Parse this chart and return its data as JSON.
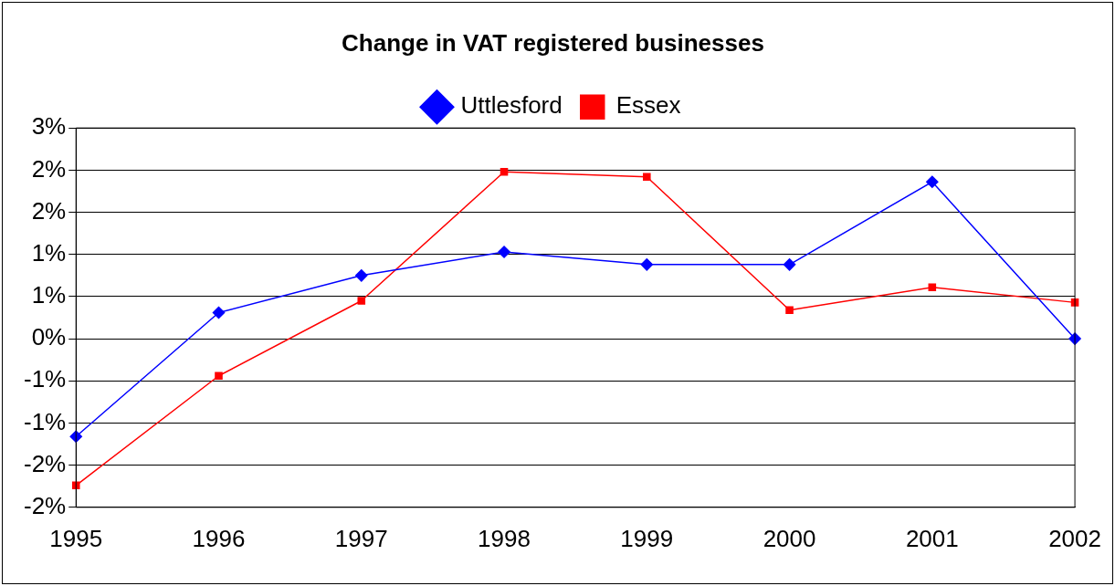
{
  "chart_data": {
    "type": "line",
    "title": "Change in VAT registered businesses",
    "categories": [
      "1995",
      "1996",
      "1997",
      "1998",
      "1999",
      "2000",
      "2001",
      "2002"
    ],
    "series": [
      {
        "name": "Uttlesford",
        "color": "#0000ff",
        "marker": "diamond",
        "values": [
          -1.16,
          0.31,
          0.75,
          1.03,
          0.88,
          0.88,
          1.86,
          0
        ]
      },
      {
        "name": "Essex",
        "color": "#ff0000",
        "marker": "square",
        "values": [
          -1.74,
          -0.44,
          0.45,
          1.98,
          1.92,
          0.34,
          0.61,
          0.43
        ]
      }
    ],
    "ylim": [
      -2,
      2.5
    ],
    "yticks": [
      {
        "value": -2,
        "label": "-2%"
      },
      {
        "value": -1.5,
        "label": "-2%"
      },
      {
        "value": -1,
        "label": "-1%"
      },
      {
        "value": -0.5,
        "label": "-1%"
      },
      {
        "value": 0,
        "label": "0%"
      },
      {
        "value": 0.5,
        "label": "1%"
      },
      {
        "value": 1,
        "label": "1%"
      },
      {
        "value": 1.5,
        "label": "2%"
      },
      {
        "value": 2,
        "label": "2%"
      },
      {
        "value": 2.5,
        "label": "3%"
      }
    ],
    "grid": "y",
    "legend": "top",
    "line_style": "solid"
  }
}
